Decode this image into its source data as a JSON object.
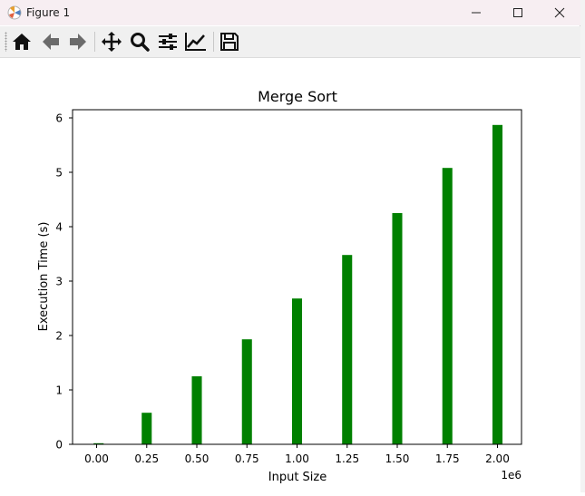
{
  "window": {
    "title": "Figure 1"
  },
  "toolbar": {
    "buttons": [
      {
        "name": "home",
        "icon": "home-icon"
      },
      {
        "name": "back",
        "icon": "arrow-left-icon"
      },
      {
        "name": "forward",
        "icon": "arrow-right-icon"
      },
      {
        "name": "pan",
        "icon": "move-icon"
      },
      {
        "name": "zoom",
        "icon": "magnifier-icon"
      },
      {
        "name": "configure-subplots",
        "icon": "sliders-icon"
      },
      {
        "name": "edit-axis",
        "icon": "line-chart-icon"
      },
      {
        "name": "save",
        "icon": "floppy-disk-icon"
      }
    ]
  },
  "chart_data": {
    "type": "bar",
    "title": "Merge Sort",
    "xlabel": "Input Size",
    "ylabel": "Execution Time (s)",
    "x_offset_label": "1e6",
    "x": [
      10000,
      250000,
      500000,
      750000,
      1000000,
      1250000,
      1500000,
      1750000,
      2000000
    ],
    "values": [
      0.02,
      0.58,
      1.25,
      1.93,
      2.68,
      3.48,
      4.25,
      5.08,
      5.87
    ],
    "xlim": [
      -120000,
      2120000
    ],
    "ylim": [
      0,
      6.15
    ],
    "xticks": [
      0,
      250000,
      500000,
      750000,
      1000000,
      1250000,
      1500000,
      1750000,
      2000000
    ],
    "xtick_labels": [
      "0.00",
      "0.25",
      "0.50",
      "0.75",
      "1.00",
      "1.25",
      "1.50",
      "1.75",
      "2.00"
    ],
    "yticks": [
      0,
      1,
      2,
      3,
      4,
      5,
      6
    ],
    "ytick_labels": [
      "0",
      "1",
      "2",
      "3",
      "4",
      "5",
      "6"
    ],
    "bar_width": 50000,
    "bar_color": "#008000",
    "grid": false
  }
}
